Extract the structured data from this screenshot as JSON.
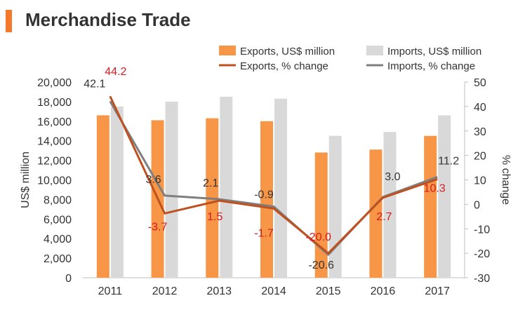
{
  "header": {
    "title": "Merchandise Trade"
  },
  "colors": {
    "title_bar": "#F4792B",
    "exports_bar": "#F79646",
    "imports_bar": "#D9D9D9",
    "exports_line": "#C0501E",
    "imports_line": "#7F7F7F",
    "exports_label": "#D71920",
    "imports_label": "#333333"
  },
  "chart_data": {
    "type": "bar",
    "categories": [
      "2011",
      "2012",
      "2013",
      "2014",
      "2015",
      "2016",
      "2017"
    ],
    "series": [
      {
        "name": "Exports, US$ million",
        "type": "bar",
        "axis": "left",
        "values": [
          16600,
          16100,
          16300,
          16000,
          12800,
          13100,
          14500
        ]
      },
      {
        "name": "Imports, US$ million",
        "type": "bar",
        "axis": "left",
        "values": [
          17500,
          18000,
          18500,
          18300,
          14500,
          14900,
          16600
        ]
      },
      {
        "name": "Exports, % change",
        "type": "line",
        "axis": "right",
        "values": [
          44.2,
          -3.7,
          1.5,
          -1.7,
          -20.0,
          2.7,
          10.3
        ],
        "labels": [
          "44.2",
          "-3.7",
          "1.5",
          "-1.7",
          "-20.0",
          "2.7",
          "10.3"
        ]
      },
      {
        "name": "Imports, % change",
        "type": "line",
        "axis": "right",
        "values": [
          42.1,
          3.6,
          2.1,
          -0.9,
          -20.6,
          3.0,
          11.2
        ],
        "labels": [
          "42.1",
          "3.6",
          "2.1",
          "-0.9",
          "-20.6",
          "3.0",
          "11.2"
        ]
      }
    ],
    "ylabel": "US$  million",
    "ylabel_right": "% change",
    "ylim": [
      0,
      20000
    ],
    "ylim_right": [
      -30,
      50
    ],
    "yticks": [
      "0",
      "2,000",
      "4,000",
      "6,000",
      "8,000",
      "10,000",
      "12,000",
      "14,000",
      "16,000",
      "18,000",
      "20,000"
    ],
    "yticks_right": [
      "-30",
      "-20",
      "-10",
      "0",
      "10",
      "20",
      "30",
      "40",
      "50"
    ],
    "grid": false,
    "legend_position": "top"
  }
}
